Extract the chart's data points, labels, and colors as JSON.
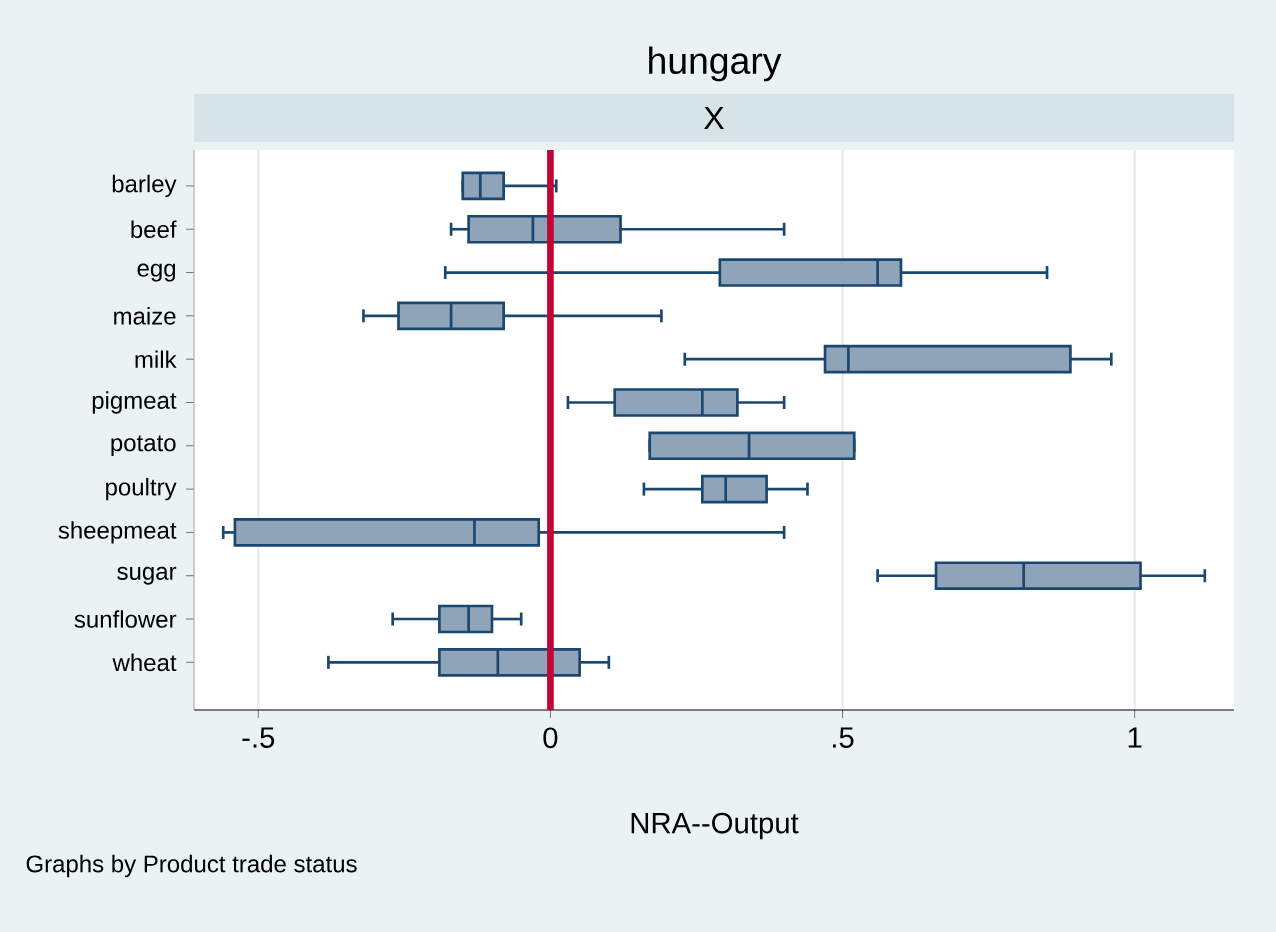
{
  "chart_data": {
    "type": "box",
    "orientation": "horizontal",
    "title": "hungary",
    "subtitle": "X",
    "xlabel": "NRA--Output",
    "annotations": [
      "Graphs by Product trade status"
    ],
    "categories": [
      "barley",
      "beef",
      "egg",
      "maize",
      "milk",
      "pigmeat",
      "potato",
      "poultry",
      "sheepmeat",
      "sugar",
      "sunflower",
      "wheat"
    ],
    "color": "#8fa3b9",
    "boxes": [
      {
        "low": -0.15,
        "q1": -0.15,
        "median": -0.12,
        "q3": -0.08,
        "high": 0.01
      },
      {
        "low": -0.17,
        "q1": -0.14,
        "median": -0.03,
        "q3": 0.12,
        "high": 0.4
      },
      {
        "low": -0.18,
        "q1": 0.29,
        "median": 0.56,
        "q3": 0.6,
        "high": 0.85
      },
      {
        "low": -0.32,
        "q1": -0.26,
        "median": -0.17,
        "q3": -0.08,
        "high": 0.19
      },
      {
        "low": 0.23,
        "q1": 0.47,
        "median": 0.51,
        "q3": 0.89,
        "high": 0.96
      },
      {
        "low": 0.03,
        "q1": 0.11,
        "median": 0.26,
        "q3": 0.32,
        "high": 0.4
      },
      {
        "low": 0.17,
        "q1": 0.17,
        "median": 0.34,
        "q3": 0.52,
        "high": 0.52
      },
      {
        "low": 0.16,
        "q1": 0.26,
        "median": 0.3,
        "q3": 0.37,
        "high": 0.44
      },
      {
        "low": -0.56,
        "q1": -0.54,
        "median": -0.13,
        "q3": -0.02,
        "high": 0.4
      },
      {
        "low": 0.56,
        "q1": 0.66,
        "median": 0.81,
        "q3": 1.01,
        "high": 1.12
      },
      {
        "low": -0.27,
        "q1": -0.19,
        "median": -0.14,
        "q3": -0.1,
        "high": -0.05
      },
      {
        "low": -0.38,
        "q1": -0.19,
        "median": -0.09,
        "q3": 0.05,
        "high": 0.1
      }
    ],
    "xlim": [
      -0.61,
      1.17
    ],
    "xticks": [
      {
        "value": -0.5,
        "label": "-.5"
      },
      0,
      {
        "value": 0.5,
        "label": ".5"
      },
      1
    ],
    "grid": "x",
    "ref_lines": [
      {
        "axis": "x",
        "value": 0,
        "color": "#c10534"
      }
    ]
  }
}
